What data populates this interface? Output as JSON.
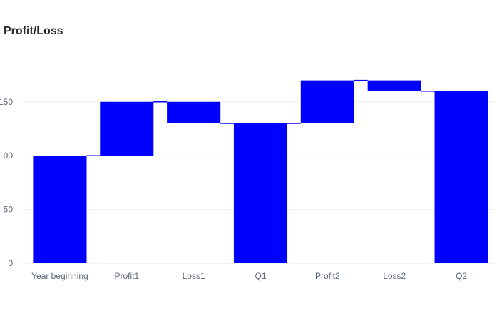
{
  "chart_data": {
    "type": "bar",
    "subtype": "waterfall",
    "title": "Profit/Loss",
    "xlabel": "",
    "ylabel": "",
    "categories": [
      "Year beginning",
      "Profit1",
      "Loss1",
      "Q1",
      "Profit2",
      "Loss2",
      "Q2"
    ],
    "measures": [
      "absolute",
      "relative",
      "relative",
      "total",
      "relative",
      "relative",
      "total"
    ],
    "values": [
      100,
      50,
      -20,
      130,
      40,
      -10,
      160
    ],
    "bar_bottoms": [
      0,
      100,
      130,
      0,
      130,
      160,
      0
    ],
    "bar_tops": [
      100,
      150,
      150,
      130,
      170,
      170,
      160
    ],
    "ylim": [
      0,
      185
    ],
    "yticks": [
      0,
      50,
      100,
      150
    ],
    "bar_color": "#0000ff",
    "connector_color": "#0000ff",
    "grid": true,
    "grid_color": "#ebedf0"
  }
}
